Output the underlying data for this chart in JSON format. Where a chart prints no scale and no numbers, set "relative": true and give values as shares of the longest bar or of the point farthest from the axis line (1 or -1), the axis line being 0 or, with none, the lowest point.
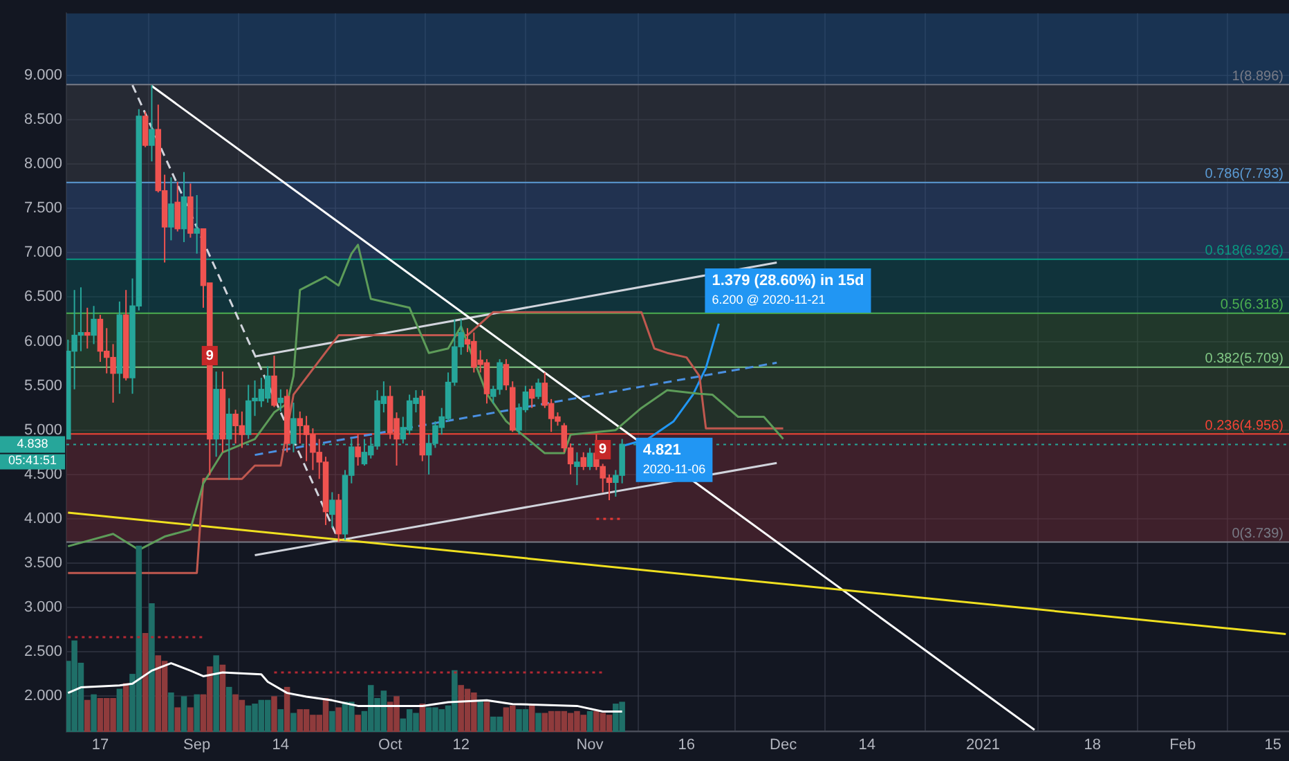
{
  "chart_data": [
    {
      "type": "candlestick",
      "grid": true,
      "legend": false,
      "x": [
        "2020-08-12",
        "2020-08-13",
        "2020-08-14",
        "2020-08-15",
        "2020-08-16",
        "2020-08-17",
        "2020-08-18",
        "2020-08-19",
        "2020-08-20",
        "2020-08-21",
        "2020-08-22",
        "2020-08-23",
        "2020-08-24",
        "2020-08-25",
        "2020-08-26",
        "2020-08-27",
        "2020-08-28",
        "2020-08-29",
        "2020-08-30",
        "2020-08-31",
        "2020-09-01",
        "2020-09-02",
        "2020-09-03",
        "2020-09-04",
        "2020-09-05",
        "2020-09-06",
        "2020-09-07",
        "2020-09-08",
        "2020-09-09",
        "2020-09-10",
        "2020-09-11",
        "2020-09-12",
        "2020-09-13",
        "2020-09-14",
        "2020-09-15",
        "2020-09-16",
        "2020-09-17",
        "2020-09-18",
        "2020-09-19",
        "2020-09-20",
        "2020-09-21",
        "2020-09-22",
        "2020-09-23",
        "2020-09-24",
        "2020-09-25",
        "2020-09-26",
        "2020-09-27",
        "2020-09-28",
        "2020-09-29",
        "2020-09-30",
        "2020-10-01",
        "2020-10-02",
        "2020-10-03",
        "2020-10-04",
        "2020-10-05",
        "2020-10-06",
        "2020-10-07",
        "2020-10-08",
        "2020-10-09",
        "2020-10-10",
        "2020-10-11",
        "2020-10-12",
        "2020-10-13",
        "2020-10-14",
        "2020-10-15",
        "2020-10-16",
        "2020-10-17",
        "2020-10-18",
        "2020-10-19",
        "2020-10-20",
        "2020-10-21",
        "2020-10-22",
        "2020-10-23",
        "2020-10-24",
        "2020-10-25",
        "2020-10-26",
        "2020-10-27",
        "2020-10-28",
        "2020-10-29",
        "2020-10-30",
        "2020-10-31",
        "2020-11-01",
        "2020-11-02",
        "2020-11-03",
        "2020-11-04",
        "2020-11-05",
        "2020-11-06"
      ],
      "ohlc": [
        [
          4.9,
          6.02,
          4.9,
          5.89
        ],
        [
          5.89,
          6.58,
          5.46,
          6.07
        ],
        [
          6.07,
          6.61,
          5.89,
          6.1
        ],
        [
          6.1,
          6.38,
          5.92,
          6.07
        ],
        [
          6.07,
          6.4,
          5.97,
          6.25
        ],
        [
          6.25,
          6.3,
          5.77,
          5.89
        ],
        [
          5.89,
          6.15,
          5.64,
          5.82
        ],
        [
          5.82,
          5.97,
          5.31,
          5.64
        ],
        [
          5.64,
          6.45,
          5.41,
          6.3
        ],
        [
          6.3,
          6.58,
          5.56,
          5.59
        ],
        [
          5.59,
          6.71,
          5.41,
          6.4
        ],
        [
          6.4,
          8.62,
          6.35,
          8.54
        ],
        [
          8.54,
          8.59,
          8.19,
          8.21
        ],
        [
          8.21,
          8.89,
          8.03,
          8.39
        ],
        [
          8.39,
          8.67,
          7.68,
          7.7
        ],
        [
          7.7,
          7.88,
          6.89,
          7.29
        ],
        [
          7.29,
          7.85,
          7.14,
          7.55
        ],
        [
          7.57,
          7.8,
          7.24,
          7.27
        ],
        [
          7.27,
          7.91,
          7.12,
          7.63
        ],
        [
          7.63,
          7.78,
          7.17,
          7.22
        ],
        [
          7.22,
          7.65,
          6.99,
          7.27
        ],
        [
          7.27,
          7.27,
          6.38,
          6.63
        ],
        [
          6.66,
          6.66,
          4.49,
          4.9
        ],
        [
          4.9,
          5.66,
          4.7,
          5.46
        ],
        [
          5.46,
          5.66,
          4.75,
          4.9
        ],
        [
          4.9,
          5.36,
          4.44,
          5.18
        ],
        [
          5.18,
          5.23,
          4.85,
          5.05
        ],
        [
          5.05,
          5.21,
          4.8,
          4.95
        ],
        [
          4.95,
          5.51,
          4.9,
          5.33
        ],
        [
          5.33,
          5.56,
          5.16,
          5.36
        ],
        [
          5.33,
          5.59,
          5.26,
          5.46
        ],
        [
          5.36,
          5.72,
          5.31,
          5.61
        ],
        [
          5.61,
          5.84,
          5.26,
          5.28
        ],
        [
          5.31,
          5.46,
          5.21,
          5.36
        ],
        [
          5.38,
          5.46,
          4.75,
          4.85
        ],
        [
          4.85,
          5.31,
          4.75,
          5.13
        ],
        [
          5.13,
          5.21,
          4.85,
          5.05
        ],
        [
          5.05,
          5.16,
          4.65,
          4.95
        ],
        [
          4.95,
          5.02,
          4.55,
          4.75
        ],
        [
          4.75,
          4.9,
          4.45,
          4.64
        ],
        [
          4.64,
          4.7,
          3.93,
          4.08
        ],
        [
          4.05,
          4.3,
          3.9,
          4.21
        ],
        [
          4.21,
          4.28,
          3.74,
          3.83
        ],
        [
          3.83,
          4.55,
          3.76,
          4.49
        ],
        [
          4.49,
          4.9,
          4.4,
          4.81
        ],
        [
          4.81,
          4.95,
          4.6,
          4.7
        ],
        [
          4.62,
          4.9,
          4.6,
          4.75
        ],
        [
          4.72,
          4.92,
          4.68,
          4.82
        ],
        [
          4.82,
          5.45,
          4.78,
          5.33
        ],
        [
          5.3,
          5.55,
          5.2,
          5.38
        ],
        [
          5.38,
          5.5,
          4.9,
          4.97
        ],
        [
          5.13,
          5.2,
          4.6,
          4.9
        ],
        [
          4.9,
          5.15,
          4.85,
          5.03
        ],
        [
          5.0,
          5.4,
          4.95,
          5.33
        ],
        [
          5.3,
          5.45,
          5.2,
          5.36
        ],
        [
          5.38,
          5.45,
          4.65,
          4.72
        ],
        [
          4.72,
          4.95,
          4.5,
          4.85
        ],
        [
          4.85,
          5.1,
          4.8,
          5.05
        ],
        [
          5.03,
          5.25,
          4.95,
          5.15
        ],
        [
          5.13,
          5.65,
          5.1,
          5.54
        ],
        [
          5.54,
          6.25,
          5.5,
          5.94
        ],
        [
          5.94,
          6.25,
          5.85,
          6.1
        ],
        [
          6.02,
          6.15,
          5.88,
          5.97
        ],
        [
          6.0,
          6.1,
          5.65,
          5.71
        ],
        [
          5.79,
          5.9,
          5.65,
          5.74
        ],
        [
          5.76,
          5.8,
          5.3,
          5.41
        ],
        [
          5.38,
          5.5,
          5.3,
          5.46
        ],
        [
          5.46,
          5.8,
          5.4,
          5.76
        ],
        [
          5.74,
          5.8,
          5.45,
          5.51
        ],
        [
          5.48,
          5.55,
          4.98,
          5.0
        ],
        [
          5.0,
          5.3,
          4.95,
          5.25
        ],
        [
          5.23,
          5.5,
          5.2,
          5.43
        ],
        [
          5.46,
          5.5,
          5.25,
          5.36
        ],
        [
          5.38,
          5.58,
          5.35,
          5.53
        ],
        [
          5.53,
          5.65,
          5.25,
          5.28
        ],
        [
          5.3,
          5.35,
          4.98,
          5.13
        ],
        [
          5.15,
          5.2,
          5.05,
          5.1
        ],
        [
          5.05,
          5.08,
          4.75,
          4.8
        ],
        [
          4.8,
          4.85,
          4.5,
          4.62
        ],
        [
          4.59,
          4.75,
          4.38,
          4.64
        ],
        [
          4.69,
          4.75,
          4.55,
          4.59
        ],
        [
          4.59,
          4.8,
          4.55,
          4.74
        ],
        [
          4.74,
          4.95,
          4.55,
          4.59
        ],
        [
          4.59,
          4.62,
          4.3,
          4.46
        ],
        [
          4.46,
          4.5,
          4.21,
          4.41
        ],
        [
          4.41,
          4.55,
          4.25,
          4.49
        ],
        [
          4.49,
          4.9,
          4.4,
          4.84
        ]
      ],
      "colors": [
        "#26a69a",
        "#26a69a",
        "#26a69a",
        "#ef5350",
        "#26a69a",
        "#ef5350",
        "#ef5350",
        "#ef5350",
        "#26a69a",
        "#ef5350",
        "#26a69a",
        "#26a69a",
        "#ef5350",
        "#26a69a",
        "#ef5350",
        "#ef5350",
        "#26a69a",
        "#ef5350",
        "#26a69a",
        "#ef5350",
        "#26a69a",
        "#ef5350",
        "#ef5350",
        "#26a69a",
        "#ef5350",
        "#26a69a",
        "#ef5350",
        "#ef5350",
        "#26a69a",
        "#26a69a",
        "#26a69a",
        "#26a69a",
        "#ef5350",
        "#26a69a",
        "#ef5350",
        "#26a69a",
        "#ef5350",
        "#ef5350",
        "#ef5350",
        "#ef5350",
        "#ef5350",
        "#26a69a",
        "#ef5350",
        "#26a69a",
        "#26a69a",
        "#ef5350",
        "#26a69a",
        "#26a69a",
        "#26a69a",
        "#26a69a",
        "#ef5350",
        "#ef5350",
        "#26a69a",
        "#26a69a",
        "#26a69a",
        "#ef5350",
        "#26a69a",
        "#26a69a",
        "#26a69a",
        "#26a69a",
        "#26a69a",
        "#26a69a",
        "#ef5350",
        "#ef5350",
        "#ef5350",
        "#ef5350",
        "#26a69a",
        "#26a69a",
        "#ef5350",
        "#ef5350",
        "#26a69a",
        "#26a69a",
        "#ef5350",
        "#26a69a",
        "#ef5350",
        "#ef5350",
        "#ef5350",
        "#ef5350",
        "#ef5350",
        "#26a69a",
        "#ef5350",
        "#26a69a",
        "#ef5350",
        "#ef5350",
        "#ef5350",
        "#26a69a",
        "#26a69a"
      ],
      "series": [
        {
          "type": "line",
          "color": "#5d9c59",
          "x": [
            "2020-08-12",
            "2020-08-19",
            "2020-08-23",
            "2020-08-27",
            "2020-08-31",
            "2020-09-02",
            "2020-09-05",
            "2020-09-10",
            "2020-09-13",
            "2020-09-15",
            "2020-09-16",
            "2020-09-17",
            "2020-09-21",
            "2020-09-23",
            "2020-09-25",
            "2020-09-26",
            "2020-09-28",
            "2020-10-04",
            "2020-10-07",
            "2020-10-10",
            "2020-10-12",
            "2020-10-16",
            "2020-10-19",
            "2020-10-25",
            "2020-10-28",
            "2020-10-29",
            "2020-11-05",
            "2020-11-09",
            "2020-11-13",
            "2020-11-18",
            "2020-11-20",
            "2020-11-24",
            "2020-11-28",
            "2020-12-01"
          ],
          "values": [
            3.69,
            3.83,
            3.65,
            3.8,
            3.88,
            4.4,
            4.75,
            4.9,
            5.2,
            5.3,
            5.61,
            6.58,
            6.73,
            6.63,
            6.99,
            7.09,
            6.48,
            6.38,
            5.87,
            5.92,
            6.17,
            5.41,
            5.1,
            4.74,
            4.74,
            4.95,
            5.0,
            5.25,
            5.45,
            5.41,
            5.4,
            5.15,
            5.15,
            4.9
          ]
        },
        {
          "type": "line",
          "color": "#c0584f",
          "x": [
            "2020-08-12",
            "2020-09-01",
            "2020-09-02",
            "2020-09-08",
            "2020-09-10",
            "2020-09-14",
            "2020-09-16",
            "2020-09-23",
            "2020-10-13",
            "2020-10-17",
            "2020-11-09",
            "2020-11-11",
            "2020-11-13",
            "2020-11-16",
            "2020-11-18",
            "2020-11-19",
            "2020-12-01"
          ],
          "values": [
            3.39,
            3.39,
            4.45,
            4.45,
            4.6,
            4.6,
            5.4,
            6.07,
            6.07,
            6.33,
            6.33,
            5.92,
            5.87,
            5.82,
            5.61,
            5.02,
            5.02
          ]
        },
        {
          "type": "line",
          "color": "#f0e020",
          "x": [
            "2020-08-12",
            "2021-02-17"
          ],
          "values": [
            4.07,
            2.7
          ]
        },
        {
          "type": "line",
          "color": "#ffffff",
          "x": [
            "2020-08-25",
            "2021-01-09"
          ],
          "values": [
            8.88,
            1.62
          ]
        },
        {
          "type": "line",
          "color": "#d1d4dc",
          "line_style": "dashed",
          "x": [
            "2020-08-22",
            "2020-09-23"
          ],
          "values": [
            8.89,
            3.76
          ]
        },
        {
          "type": "line",
          "color": "#d1d4dc",
          "x": [
            "2020-09-10",
            "2020-11-30"
          ],
          "values": [
            5.83,
            6.89
          ]
        },
        {
          "type": "line",
          "color": "#d1d4dc",
          "x": [
            "2020-09-10",
            "2020-11-30"
          ],
          "values": [
            3.59,
            4.63
          ]
        },
        {
          "type": "line",
          "color": "#4a90e2",
          "line_style": "dashed",
          "x": [
            "2020-09-10",
            "2020-11-30"
          ],
          "values": [
            4.72,
            5.76
          ]
        },
        {
          "type": "line",
          "color": "#2196f3",
          "x": [
            "2020-11-06",
            "2020-11-10",
            "2020-11-14",
            "2020-11-17",
            "2020-11-19",
            "2020-11-21"
          ],
          "values": [
            4.82,
            4.9,
            5.1,
            5.4,
            5.7,
            6.2
          ]
        },
        {
          "type": "line",
          "color": "#e53935",
          "line_style": "dotted",
          "x": [
            "2020-11-02",
            "2020-11-06"
          ],
          "values": [
            4.0,
            4.0
          ]
        }
      ],
      "bands": [
        {
          "axis": "y",
          "from": 8.896,
          "to": 9.7,
          "color": "#204f82"
        },
        {
          "axis": "y",
          "from": 7.793,
          "to": 8.896,
          "color": "#3a3d45"
        },
        {
          "axis": "y",
          "from": 6.926,
          "to": 7.793,
          "color": "#304d7e"
        },
        {
          "axis": "y",
          "from": 6.318,
          "to": 6.926,
          "color": "#0d5054"
        },
        {
          "axis": "y",
          "from": 5.709,
          "to": 6.318,
          "color": "#2f5a34"
        },
        {
          "axis": "y",
          "from": 4.956,
          "to": 5.709,
          "color": "#344c30"
        },
        {
          "axis": "y",
          "from": 3.739,
          "to": 4.956,
          "color": "#6a2a33"
        }
      ],
      "ref_lines": [
        {
          "axis": "y",
          "value": 8.896,
          "label": "1(8.896)",
          "color": "#787b86"
        },
        {
          "axis": "y",
          "value": 7.793,
          "label": "0.786(7.793)",
          "color": "#5b9bd5"
        },
        {
          "axis": "y",
          "value": 6.926,
          "label": "0.618(6.926)",
          "color": "#089981"
        },
        {
          "axis": "y",
          "value": 6.318,
          "label": "0.5(6.318)",
          "color": "#4caf50"
        },
        {
          "axis": "y",
          "value": 5.709,
          "label": "0.382(5.709)",
          "color": "#81c784"
        },
        {
          "axis": "y",
          "value": 4.956,
          "label": "0.236(4.956)",
          "color": "#f44336"
        },
        {
          "axis": "y",
          "value": 3.739,
          "label": "0(3.739)",
          "color": "#787b86"
        },
        {
          "axis": "y",
          "value": 4.838,
          "label": "4.838",
          "color": "#26a69a",
          "line_style": "dotted"
        }
      ],
      "annotations": [
        {
          "text": "1.379 (28.60%) in 15d",
          "x": "2020-11-21",
          "y": 6.2
        },
        {
          "text": "6.200 @ 2020-11-21",
          "x": "2020-11-21",
          "y": 6.2
        },
        {
          "text": "4.821",
          "x": "2020-11-06",
          "y": 4.821
        },
        {
          "text": "2020-11-06",
          "x": "2020-11-06",
          "y": 4.821
        },
        {
          "text": "9",
          "x": "2020-09-03",
          "y": 5.84
        },
        {
          "text": "9",
          "x": "2020-11-03",
          "y": 4.78
        },
        "05:41:51"
      ],
      "xlim": [
        "2020-08-11T18:00",
        "2021-02-17T12:00"
      ],
      "xticks": [
        {
          "value": "2020-08-17",
          "label": "17"
        },
        {
          "value": "2020-09-01",
          "label": "Sep"
        },
        {
          "value": "2020-09-14",
          "label": "14"
        },
        {
          "value": "2020-10-01",
          "label": "Oct"
        },
        {
          "value": "2020-10-12",
          "label": "12"
        },
        {
          "value": "2020-11-01",
          "label": "Nov"
        },
        {
          "value": "2020-11-16",
          "label": "16"
        },
        {
          "value": "2020-12-01",
          "label": "Dec"
        },
        {
          "value": "2020-12-14",
          "label": "14"
        },
        {
          "value": "2021-01-01",
          "label": "2021"
        },
        {
          "value": "2021-01-18",
          "label": "18"
        },
        {
          "value": "2021-02-01",
          "label": "Feb"
        },
        {
          "value": "2021-02-15",
          "label": "15"
        }
      ],
      "ylim": [
        1.6,
        9.7
      ],
      "yticks": [
        {
          "value": 2,
          "label": "2.000"
        },
        {
          "value": 2.5,
          "label": "2.500"
        },
        {
          "value": 3,
          "label": "3.000"
        },
        {
          "value": 3.5,
          "label": "3.500"
        },
        {
          "value": 4,
          "label": "4.000"
        },
        {
          "value": 4.5,
          "label": "4.500"
        },
        {
          "value": 5,
          "label": "5.000"
        },
        {
          "value": 5.5,
          "label": "5.500"
        },
        {
          "value": 6,
          "label": "6.000"
        },
        {
          "value": 6.5,
          "label": "6.500"
        },
        {
          "value": 7,
          "label": "7.000"
        },
        {
          "value": 7.5,
          "label": "7.500"
        },
        {
          "value": 8,
          "label": "8.000"
        },
        {
          "value": 8.5,
          "label": "8.500"
        },
        {
          "value": 9,
          "label": "9.000"
        }
      ]
    },
    {
      "type": "bar",
      "relative": true,
      "legend": false,
      "x": [
        "2020-08-12",
        "2020-08-13",
        "2020-08-14",
        "2020-08-15",
        "2020-08-16",
        "2020-08-17",
        "2020-08-18",
        "2020-08-19",
        "2020-08-20",
        "2020-08-21",
        "2020-08-22",
        "2020-08-23",
        "2020-08-24",
        "2020-08-25",
        "2020-08-26",
        "2020-08-27",
        "2020-08-28",
        "2020-08-29",
        "2020-08-30",
        "2020-08-31",
        "2020-09-01",
        "2020-09-02",
        "2020-09-03",
        "2020-09-04",
        "2020-09-05",
        "2020-09-06",
        "2020-09-07",
        "2020-09-08",
        "2020-09-09",
        "2020-09-10",
        "2020-09-11",
        "2020-09-12",
        "2020-09-13",
        "2020-09-14",
        "2020-09-15",
        "2020-09-16",
        "2020-09-17",
        "2020-09-18",
        "2020-09-19",
        "2020-09-20",
        "2020-09-21",
        "2020-09-22",
        "2020-09-23",
        "2020-09-24",
        "2020-09-25",
        "2020-09-26",
        "2020-09-27",
        "2020-09-28",
        "2020-09-29",
        "2020-09-30",
        "2020-10-01",
        "2020-10-02",
        "2020-10-03",
        "2020-10-04",
        "2020-10-05",
        "2020-10-06",
        "2020-10-07",
        "2020-10-08",
        "2020-10-09",
        "2020-10-10",
        "2020-10-11",
        "2020-10-12",
        "2020-10-13",
        "2020-10-14",
        "2020-10-15",
        "2020-10-16",
        "2020-10-17",
        "2020-10-18",
        "2020-10-19",
        "2020-10-20",
        "2020-10-21",
        "2020-10-22",
        "2020-10-23",
        "2020-10-24",
        "2020-10-25",
        "2020-10-26",
        "2020-10-27",
        "2020-10-28",
        "2020-10-29",
        "2020-10-30",
        "2020-10-31",
        "2020-11-01",
        "2020-11-02",
        "2020-11-03",
        "2020-11-04",
        "2020-11-05",
        "2020-11-06"
      ],
      "xlim": [
        "2020-08-11T18:00",
        "2021-02-17T12:00"
      ],
      "colors": [
        "#1f6f68",
        "#1f6f68",
        "#1f6f68",
        "#8f3b3c",
        "#1f6f68",
        "#8f3b3c",
        "#8f3b3c",
        "#8f3b3c",
        "#1f6f68",
        "#8f3b3c",
        "#1f6f68",
        "#1f6f68",
        "#8f3b3c",
        "#1f6f68",
        "#8f3b3c",
        "#8f3b3c",
        "#1f6f68",
        "#8f3b3c",
        "#1f6f68",
        "#8f3b3c",
        "#1f6f68",
        "#8f3b3c",
        "#8f3b3c",
        "#1f6f68",
        "#8f3b3c",
        "#1f6f68",
        "#8f3b3c",
        "#8f3b3c",
        "#1f6f68",
        "#1f6f68",
        "#1f6f68",
        "#1f6f68",
        "#8f3b3c",
        "#1f6f68",
        "#8f3b3c",
        "#1f6f68",
        "#8f3b3c",
        "#8f3b3c",
        "#8f3b3c",
        "#8f3b3c",
        "#8f3b3c",
        "#1f6f68",
        "#8f3b3c",
        "#1f6f68",
        "#1f6f68",
        "#8f3b3c",
        "#1f6f68",
        "#1f6f68",
        "#1f6f68",
        "#1f6f68",
        "#8f3b3c",
        "#8f3b3c",
        "#1f6f68",
        "#1f6f68",
        "#1f6f68",
        "#8f3b3c",
        "#1f6f68",
        "#1f6f68",
        "#1f6f68",
        "#1f6f68",
        "#1f6f68",
        "#8f3b3c",
        "#8f3b3c",
        "#8f3b3c",
        "#1f6f68",
        "#8f3b3c",
        "#1f6f68",
        "#1f6f68",
        "#8f3b3c",
        "#8f3b3c",
        "#1f6f68",
        "#1f6f68",
        "#8f3b3c",
        "#1f6f68",
        "#8f3b3c",
        "#8f3b3c",
        "#8f3b3c",
        "#8f3b3c",
        "#8f3b3c",
        "#8f3b3c",
        "#8f3b3c",
        "#1f6f68",
        "#8f3b3c",
        "#8f3b3c",
        "#8f3b3c",
        "#1f6f68",
        "#1f6f68"
      ],
      "values": [
        0.38,
        0.49,
        0.37,
        0.17,
        0.2,
        0.18,
        0.18,
        0.18,
        0.23,
        0.26,
        0.31,
        1,
        0.53,
        0.69,
        0.41,
        0.38,
        0.21,
        0.13,
        0.19,
        0.13,
        0.2,
        0.2,
        0.35,
        0.41,
        0.36,
        0.24,
        0.2,
        0.17,
        0.14,
        0.15,
        0.17,
        0.17,
        0.19,
        0.12,
        0.24,
        0.1,
        0.12,
        0.12,
        0.09,
        0.09,
        0.18,
        0.11,
        0.13,
        0.16,
        0.16,
        0.09,
        0.11,
        0.25,
        0.18,
        0.22,
        0.16,
        0.19,
        0.07,
        0.12,
        0.1,
        0.15,
        0.13,
        0.13,
        0.12,
        0.14,
        0.33,
        0.25,
        0.23,
        0.21,
        0.17,
        0.16,
        0.08,
        0.08,
        0.13,
        0.14,
        0.12,
        0.12,
        0.14,
        0.1,
        0.1,
        0.11,
        0.11,
        0.11,
        0.1,
        0.11,
        0.09,
        0.11,
        0.11,
        0.1,
        0.09,
        0.15,
        0.16
      ],
      "series": [
        {
          "type": "line",
          "color": "#ffffff",
          "x": [
            "2020-08-12",
            "2020-08-14",
            "2020-08-20",
            "2020-08-22",
            "2020-08-25",
            "2020-08-28",
            "2020-08-31",
            "2020-09-02",
            "2020-09-05",
            "2020-09-11",
            "2020-09-12",
            "2020-09-15",
            "2020-09-18",
            "2020-09-22",
            "2020-09-26",
            "2020-10-02",
            "2020-10-06",
            "2020-10-10",
            "2020-10-16",
            "2020-10-20",
            "2020-10-30",
            "2020-11-03",
            "2020-11-06"
          ],
          "values": [
            0.21,
            0.24,
            0.25,
            0.26,
            0.33,
            0.37,
            0.33,
            0.3,
            0.32,
            0.31,
            0.27,
            0.21,
            0.19,
            0.17,
            0.14,
            0.14,
            0.14,
            0.16,
            0.17,
            0.15,
            0.14,
            0.11,
            0.11
          ]
        },
        {
          "type": "line",
          "color": "#b22833",
          "line_style": "dotted",
          "x": [
            "2020-08-12",
            "2020-09-02"
          ],
          "values": [
            0.51,
            0.51
          ]
        },
        {
          "type": "line",
          "color": "#b22833",
          "line_style": "dotted",
          "x": [
            "2020-09-13",
            "2020-11-03"
          ],
          "values": [
            0.32,
            0.32
          ]
        }
      ]
    }
  ]
}
